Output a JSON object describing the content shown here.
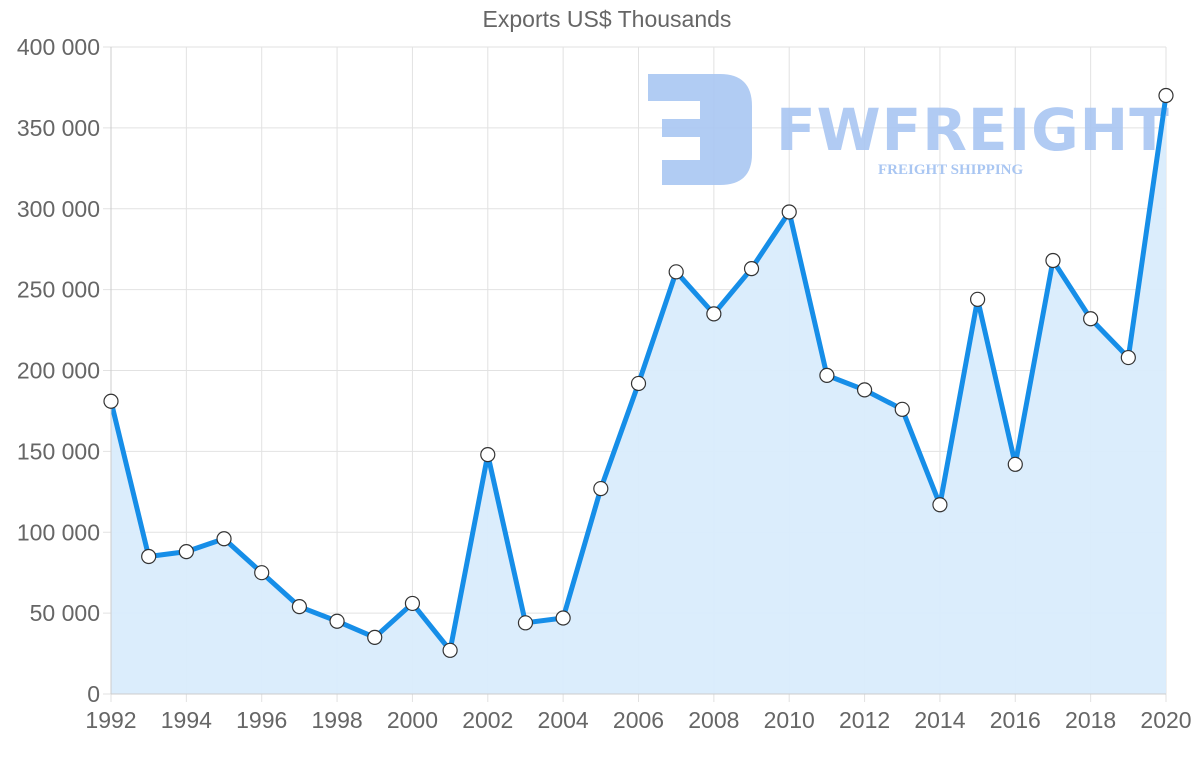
{
  "chart_data": {
    "type": "line",
    "title": "Exports US$ Thousands",
    "xlabel": "",
    "ylabel": "",
    "x": [
      1992,
      1993,
      1994,
      1995,
      1996,
      1997,
      1998,
      1999,
      2000,
      2001,
      2002,
      2003,
      2004,
      2005,
      2006,
      2007,
      2008,
      2009,
      2010,
      2011,
      2012,
      2013,
      2014,
      2015,
      2016,
      2017,
      2018,
      2019,
      2020
    ],
    "series": [
      {
        "name": "Exports US$ Thousands",
        "values": [
          181000,
          85000,
          88000,
          96000,
          75000,
          54000,
          45000,
          35000,
          56000,
          27000,
          148000,
          44000,
          47000,
          127000,
          192000,
          261000,
          235000,
          263000,
          298000,
          197000,
          188000,
          176000,
          117000,
          244000,
          142000,
          268000,
          232000,
          208000,
          370000
        ]
      }
    ],
    "ylim": [
      0,
      400000
    ],
    "xlim": [
      1992,
      2020
    ],
    "y_ticks": [
      0,
      50000,
      100000,
      150000,
      200000,
      250000,
      300000,
      350000,
      400000
    ],
    "y_tick_labels": [
      "0",
      "50 000",
      "100 000",
      "150 000",
      "200 000",
      "250 000",
      "300 000",
      "350 000",
      "400 000"
    ],
    "x_tick_labels": [
      "1992",
      "1994",
      "1996",
      "1998",
      "2000",
      "2002",
      "2004",
      "2006",
      "2008",
      "2010",
      "2012",
      "2014",
      "2016",
      "2018",
      "2020"
    ],
    "grid": true,
    "legend": false,
    "area_fill": true
  },
  "colors": {
    "line": "#168ee8",
    "fill": "#d9ecfc",
    "marker_fill": "#ffffff",
    "marker_stroke": "#333333",
    "watermark": "#a9c6f2"
  },
  "watermark": {
    "brand": "FWFREIGHT",
    "tagline": "FREIGHT SHIPPING"
  }
}
